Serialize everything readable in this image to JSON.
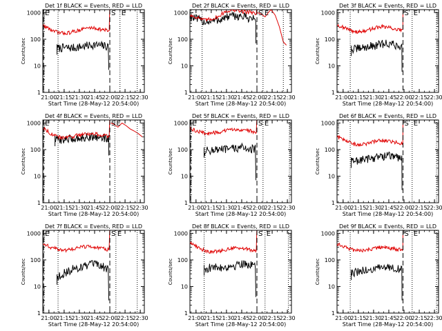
{
  "chart_data": [
    {
      "type": "line",
      "title": "Det 1f BLACK = Events, RED = LLD",
      "xlabel": "Start Time (28-May-12 20:54:00)",
      "ylabel": "Counts/sec",
      "yscale": "log",
      "ylim": [
        1,
        1000
      ],
      "ytick_labels": [
        "1",
        "10",
        "100",
        "1000"
      ],
      "xtick_labels": [
        "21:00",
        "21:15",
        "21:30",
        "21:45",
        "22:00",
        "22:15",
        "22:30"
      ],
      "xlim_minutes": [
        0,
        100
      ],
      "x_ticks_minutes": [
        6,
        21,
        36,
        51,
        66,
        81,
        96
      ],
      "markers": [
        {
          "label": "E",
          "x": 0.8,
          "style": "dashed"
        },
        {
          "label": "",
          "x": 15.0,
          "style": "dotted"
        },
        {
          "label": "S",
          "x": 66.0,
          "style": "dashed"
        },
        {
          "label": "E",
          "x": 76.0,
          "style": "dotted"
        },
        {
          "label": "",
          "x": 93.0,
          "style": "dotted"
        }
      ],
      "series": [
        {
          "color": "#000000",
          "end": 65.0,
          "xpts": [
            14,
            22,
            30,
            38,
            44,
            50,
            56,
            62,
            65
          ],
          "ypts": [
            45,
            48,
            47,
            52,
            57,
            62,
            58,
            55,
            52
          ],
          "drop": 7
        },
        {
          "color": "#e00000",
          "end": 66.0,
          "xpts": [
            0,
            10,
            18,
            26,
            34,
            42,
            50,
            58,
            65
          ],
          "ypts": [
            330,
            200,
            170,
            175,
            210,
            260,
            270,
            230,
            210
          ],
          "spike": true
        }
      ]
    },
    {
      "type": "line",
      "title": "Det 2f BLACK = Events, RED = LLD",
      "xlabel": "Start Time (28-May-12 20:54:00)",
      "ylabel": "Counts/sec",
      "yscale": "log",
      "ylim": [
        1,
        1000
      ],
      "ytick_labels": [
        "1",
        "10",
        "100",
        "1000"
      ],
      "xtick_labels": [
        "21:00",
        "21:15",
        "21:30",
        "21:45",
        "22:00",
        "22:15",
        "22:30"
      ],
      "xlim_minutes": [
        0,
        100
      ],
      "x_ticks_minutes": [
        6,
        21,
        36,
        51,
        66,
        81,
        96
      ],
      "markers": [
        {
          "label": "",
          "x": 12.0,
          "style": "dotted"
        },
        {
          "label": "S",
          "x": 66.0,
          "style": "dashed"
        },
        {
          "label": "E",
          "x": 72.0,
          "style": "dotted"
        },
        {
          "label": "",
          "x": 92.0,
          "style": "dotted"
        }
      ],
      "series": [
        {
          "color": "#000000",
          "end": 65.0,
          "xpts": [
            0,
            8,
            15,
            22,
            30,
            38,
            46,
            54,
            60,
            65
          ],
          "ypts": [
            700,
            550,
            450,
            480,
            560,
            700,
            760,
            680,
            610,
            570
          ],
          "drop": 70
        },
        {
          "color": "#e00000",
          "end": 66.0,
          "xpts": [
            0,
            8,
            14,
            20,
            28,
            36,
            44,
            52,
            60,
            65
          ],
          "ypts": [
            800,
            650,
            520,
            560,
            700,
            1150,
            1250,
            1100,
            1050,
            950
          ],
          "spike": true
        }
      ]
    },
    {
      "type": "line",
      "title": "Det 3f BLACK = Events, RED = LLD",
      "xlabel": "Start Time (28-May-12 20:54:00)",
      "ylabel": "Counts/sec",
      "yscale": "log",
      "ylim": [
        1,
        1000
      ],
      "ytick_labels": [
        "1",
        "10",
        "100",
        "1000"
      ],
      "xtick_labels": [
        "21:00",
        "21:15",
        "21:30",
        "21:45",
        "22:00",
        "22:15",
        "22:30"
      ],
      "xlim_minutes": [
        0,
        100
      ],
      "x_ticks_minutes": [
        6,
        21,
        36,
        51,
        66,
        81,
        96
      ],
      "markers": [
        {
          "label": "",
          "x": 13.0,
          "style": "dotted"
        },
        {
          "label": "S",
          "x": 65.0,
          "style": "dashed"
        },
        {
          "label": "E",
          "x": 74.0,
          "style": "dotted"
        },
        {
          "label": "",
          "x": 98.0,
          "style": "dotted"
        }
      ],
      "series": [
        {
          "color": "#000000",
          "end": 64.0,
          "xpts": [
            14,
            22,
            30,
            38,
            44,
            50,
            56,
            62,
            64
          ],
          "ypts": [
            40,
            45,
            52,
            58,
            65,
            70,
            62,
            55,
            50
          ],
          "drop": 6
        },
        {
          "color": "#e00000",
          "end": 65.0,
          "xpts": [
            0,
            8,
            14,
            20,
            28,
            36,
            44,
            52,
            60,
            64
          ],
          "ypts": [
            350,
            260,
            210,
            190,
            200,
            260,
            300,
            270,
            230,
            210
          ],
          "spike": true
        }
      ]
    },
    {
      "type": "line",
      "title": "Det 4f BLACK = Events, RED = LLD",
      "xlabel": "Start Time (28-May-12 20:54:00)",
      "ylabel": "Counts/sec",
      "yscale": "log",
      "ylim": [
        1,
        1000
      ],
      "ytick_labels": [
        "1",
        "10",
        "100",
        "1000"
      ],
      "xtick_labels": [
        "21:00",
        "21:15",
        "21:30",
        "21:45",
        "22:00",
        "22:15",
        "22:30"
      ],
      "xlim_minutes": [
        0,
        100
      ],
      "x_ticks_minutes": [
        6,
        21,
        36,
        51,
        66,
        81,
        96
      ],
      "markers": [
        {
          "label": "E",
          "x": 0.8,
          "style": "dashed"
        },
        {
          "label": "",
          "x": 15.0,
          "style": "dotted"
        },
        {
          "label": "S",
          "x": 66.0,
          "style": "dashed"
        },
        {
          "label": "E",
          "x": 71.0,
          "style": "dotted"
        },
        {
          "label": "",
          "x": 93.0,
          "style": "dotted"
        }
      ],
      "series": [
        {
          "color": "#000000",
          "end": 65.0,
          "xpts": [
            12,
            20,
            28,
            36,
            44,
            50,
            56,
            62,
            65
          ],
          "ypts": [
            230,
            240,
            250,
            270,
            300,
            310,
            290,
            265,
            250
          ],
          "drop": 60
        },
        {
          "color": "#e00000",
          "end": 66.0,
          "xpts": [
            0,
            8,
            14,
            20,
            28,
            36,
            44,
            52,
            60,
            65
          ],
          "ypts": [
            650,
            400,
            300,
            280,
            300,
            360,
            400,
            380,
            340,
            300
          ],
          "spike": true
        }
      ]
    },
    {
      "type": "line",
      "title": "Det 5f BLACK = Events, RED = LLD",
      "xlabel": "Start Time (28-May-12 20:54:00)",
      "ylabel": "Counts/sec",
      "yscale": "log",
      "ylim": [
        1,
        1000
      ],
      "ytick_labels": [
        "1",
        "10",
        "100",
        "1000"
      ],
      "xtick_labels": [
        "21:00",
        "21:15",
        "21:30",
        "21:45",
        "22:00",
        "22:15",
        "22:30"
      ],
      "xlim_minutes": [
        0,
        100
      ],
      "x_ticks_minutes": [
        6,
        21,
        36,
        51,
        66,
        81,
        96
      ],
      "markers": [
        {
          "label": "E",
          "x": 0.8,
          "style": "dashed"
        },
        {
          "label": "",
          "x": 15.0,
          "style": "dotted"
        },
        {
          "label": "S",
          "x": 66.0,
          "style": "dashed"
        },
        {
          "label": "E",
          "x": 72.0,
          "style": "dotted"
        },
        {
          "label": "",
          "x": 98.0,
          "style": "dotted"
        }
      ],
      "series": [
        {
          "color": "#000000",
          "end": 65.0,
          "xpts": [
            14,
            20,
            28,
            36,
            44,
            50,
            56,
            62,
            65
          ],
          "ypts": [
            85,
            95,
            98,
            100,
            110,
            120,
            115,
            105,
            100
          ],
          "drop": 7
        },
        {
          "color": "#e00000",
          "end": 66.0,
          "xpts": [
            0,
            8,
            14,
            20,
            28,
            36,
            44,
            52,
            60,
            65
          ],
          "ypts": [
            600,
            480,
            420,
            410,
            440,
            520,
            580,
            560,
            500,
            450
          ],
          "spike": true
        }
      ]
    },
    {
      "type": "line",
      "title": "Det 6f BLACK = Events, RED = LLD",
      "xlabel": "Start Time (28-May-12 20:54:00)",
      "ylabel": "Counts/sec",
      "yscale": "log",
      "ylim": [
        1,
        1000
      ],
      "ytick_labels": [
        "1",
        "10",
        "100",
        "1000"
      ],
      "xtick_labels": [
        "21:00",
        "21:15",
        "21:30",
        "21:45",
        "22:00",
        "22:15",
        "22:30"
      ],
      "xlim_minutes": [
        0,
        100
      ],
      "x_ticks_minutes": [
        6,
        21,
        36,
        51,
        66,
        81,
        96
      ],
      "markers": [
        {
          "label": "",
          "x": 13.0,
          "style": "dotted"
        },
        {
          "label": "S",
          "x": 65.0,
          "style": "dashed"
        },
        {
          "label": "E",
          "x": 74.0,
          "style": "dotted"
        },
        {
          "label": "",
          "x": 98.0,
          "style": "dotted"
        }
      ],
      "series": [
        {
          "color": "#000000",
          "end": 64.0,
          "xpts": [
            14,
            22,
            30,
            38,
            44,
            50,
            56,
            62,
            64
          ],
          "ypts": [
            35,
            40,
            45,
            50,
            55,
            60,
            55,
            48,
            45
          ],
          "drop": 3
        },
        {
          "color": "#e00000",
          "end": 65.0,
          "xpts": [
            0,
            8,
            14,
            20,
            28,
            36,
            44,
            52,
            60,
            64
          ],
          "ypts": [
            300,
            220,
            170,
            150,
            160,
            200,
            220,
            200,
            180,
            170
          ],
          "spike": true
        }
      ]
    },
    {
      "type": "line",
      "title": "Det 7f BLACK = Events, RED = LLD",
      "xlabel": "Start Time (28-May-12 20:54:00)",
      "ylabel": "Counts/sec",
      "yscale": "log",
      "ylim": [
        1,
        1000
      ],
      "ytick_labels": [
        "1",
        "10",
        "100",
        "1000"
      ],
      "xtick_labels": [
        "21:00",
        "21:15",
        "21:30",
        "21:45",
        "22:00",
        "22:15",
        "22:30"
      ],
      "xlim_minutes": [
        0,
        100
      ],
      "x_ticks_minutes": [
        6,
        21,
        36,
        51,
        66,
        81,
        96
      ],
      "markers": [
        {
          "label": "E",
          "x": 0.8,
          "style": "dashed"
        },
        {
          "label": "",
          "x": 15.0,
          "style": "dotted"
        },
        {
          "label": "S",
          "x": 66.0,
          "style": "dashed"
        },
        {
          "label": "E",
          "x": 72.0,
          "style": "dotted"
        },
        {
          "label": "",
          "x": 93.0,
          "style": "dotted"
        }
      ],
      "series": [
        {
          "color": "#000000",
          "end": 65.0,
          "xpts": [
            14,
            18,
            24,
            30,
            38,
            44,
            50,
            56,
            62,
            65
          ],
          "ypts": [
            20,
            28,
            35,
            45,
            55,
            62,
            68,
            60,
            50,
            45
          ],
          "drop": 3
        },
        {
          "color": "#e00000",
          "end": 66.0,
          "xpts": [
            0,
            8,
            14,
            20,
            28,
            36,
            44,
            52,
            60,
            65
          ],
          "ypts": [
            400,
            300,
            250,
            230,
            250,
            300,
            320,
            290,
            260,
            240
          ],
          "spike": true
        }
      ]
    },
    {
      "type": "line",
      "title": "Det 8f BLACK = Events, RED = LLD",
      "xlabel": "Start Time (28-May-12 20:54:00)",
      "ylabel": "Counts/sec",
      "yscale": "log",
      "ylim": [
        1,
        1000
      ],
      "ytick_labels": [
        "1",
        "10",
        "100",
        "1000"
      ],
      "xtick_labels": [
        "21:00",
        "21:15",
        "21:30",
        "21:45",
        "22:00",
        "22:15",
        "22:30"
      ],
      "xlim_minutes": [
        0,
        100
      ],
      "x_ticks_minutes": [
        6,
        21,
        36,
        51,
        66,
        81,
        96
      ],
      "markers": [
        {
          "label": "",
          "x": 14.0,
          "style": "dotted"
        },
        {
          "label": "S",
          "x": 66.0,
          "style": "dashed"
        },
        {
          "label": "E",
          "x": 74.0,
          "style": "dotted"
        },
        {
          "label": "",
          "x": 97.0,
          "style": "dotted"
        }
      ],
      "series": [
        {
          "color": "#000000",
          "end": 65.0,
          "xpts": [
            14,
            20,
            28,
            36,
            44,
            50,
            56,
            62,
            65
          ],
          "ypts": [
            45,
            50,
            52,
            55,
            60,
            75,
            70,
            60,
            55
          ],
          "drop": 4
        },
        {
          "color": "#e00000",
          "end": 66.0,
          "xpts": [
            0,
            8,
            14,
            20,
            28,
            36,
            44,
            52,
            60,
            65
          ],
          "ypts": [
            450,
            300,
            230,
            200,
            210,
            250,
            290,
            270,
            240,
            220
          ],
          "spike": true
        }
      ]
    },
    {
      "type": "line",
      "title": "Det 9f BLACK = Events, RED = LLD",
      "xlabel": "Start Time (28-May-12 20:54:00)",
      "ylabel": "Counts/sec",
      "yscale": "log",
      "ylim": [
        1,
        1000
      ],
      "ytick_labels": [
        "1",
        "10",
        "100",
        "1000"
      ],
      "xtick_labels": [
        "21:00",
        "21:15",
        "21:30",
        "21:45",
        "22:00",
        "22:15",
        "22:30"
      ],
      "xlim_minutes": [
        0,
        100
      ],
      "x_ticks_minutes": [
        6,
        21,
        36,
        51,
        66,
        81,
        96
      ],
      "markers": [
        {
          "label": "",
          "x": 13.0,
          "style": "dotted"
        },
        {
          "label": "S",
          "x": 65.0,
          "style": "dashed"
        },
        {
          "label": "E",
          "x": 74.0,
          "style": "dotted"
        },
        {
          "label": "",
          "x": 98.0,
          "style": "dotted"
        }
      ],
      "series": [
        {
          "color": "#000000",
          "end": 64.0,
          "xpts": [
            14,
            20,
            28,
            36,
            44,
            50,
            56,
            62,
            64
          ],
          "ypts": [
            30,
            35,
            40,
            45,
            50,
            55,
            50,
            45,
            42
          ],
          "drop": 3
        },
        {
          "color": "#e00000",
          "end": 65.0,
          "xpts": [
            0,
            8,
            14,
            20,
            28,
            36,
            44,
            52,
            60,
            64
          ],
          "ypts": [
            400,
            300,
            250,
            220,
            230,
            270,
            300,
            280,
            250,
            230
          ],
          "spike": true
        }
      ]
    }
  ]
}
